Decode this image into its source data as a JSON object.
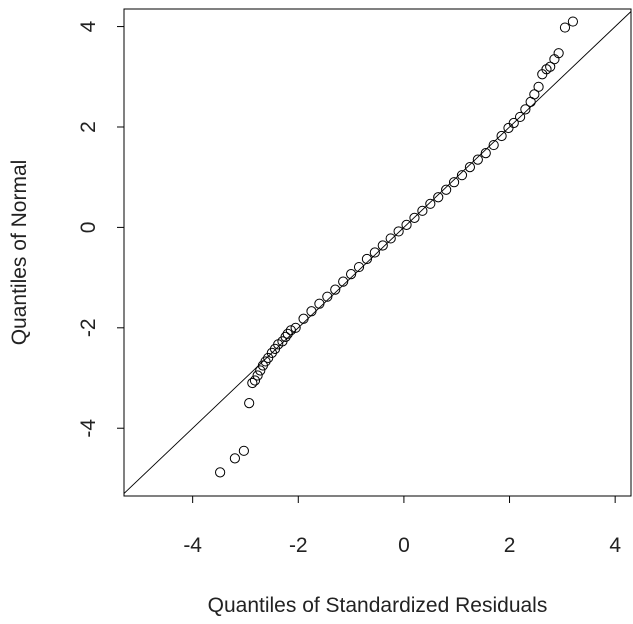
{
  "chart_data": {
    "type": "scatter",
    "title": "",
    "xlabel": "Quantiles of Standardized Residuals",
    "ylabel": "Quantiles of Normal",
    "xlim": [
      -5.3,
      4.3
    ],
    "ylim": [
      -5.35,
      4.35
    ],
    "xticks": [
      "-4",
      "-2",
      "0",
      "2",
      "4"
    ],
    "yticks": [
      "4",
      "2",
      "0",
      "-2",
      "-4"
    ],
    "grid": false,
    "legend": "none",
    "reference_line": {
      "slope": 1,
      "intercept": 0
    },
    "series": [
      {
        "marker": "open-circle",
        "color": "#000000",
        "x": [
          -3.48,
          -3.2,
          -3.03,
          -2.93,
          -2.87,
          -2.82,
          -2.77,
          -2.72,
          -2.67,
          -2.62,
          -2.57,
          -2.5,
          -2.44,
          -2.38,
          -2.3,
          -2.24,
          -2.2,
          -2.14,
          -2.05,
          -1.9,
          -1.75,
          -1.6,
          -1.45,
          -1.3,
          -1.15,
          -1.0,
          -0.85,
          -0.7,
          -0.55,
          -0.4,
          -0.25,
          -0.1,
          0.05,
          0.2,
          0.35,
          0.5,
          0.65,
          0.8,
          0.95,
          1.1,
          1.25,
          1.4,
          1.55,
          1.7,
          1.85,
          1.98,
          2.08,
          2.2,
          2.3,
          2.4,
          2.47,
          2.55,
          2.62,
          2.7,
          2.77,
          2.85,
          2.93,
          3.05,
          3.2
        ],
        "y": [
          -4.88,
          -4.6,
          -4.45,
          -3.5,
          -3.1,
          -3.05,
          -2.95,
          -2.85,
          -2.75,
          -2.67,
          -2.6,
          -2.5,
          -2.42,
          -2.33,
          -2.27,
          -2.18,
          -2.12,
          -2.05,
          -2.0,
          -1.82,
          -1.67,
          -1.52,
          -1.38,
          -1.24,
          -1.08,
          -0.93,
          -0.79,
          -0.63,
          -0.5,
          -0.36,
          -0.22,
          -0.08,
          0.05,
          0.19,
          0.33,
          0.47,
          0.6,
          0.75,
          0.9,
          1.04,
          1.2,
          1.35,
          1.48,
          1.64,
          1.82,
          1.98,
          2.08,
          2.2,
          2.35,
          2.5,
          2.65,
          2.8,
          3.05,
          3.15,
          3.2,
          3.35,
          3.47,
          3.98,
          4.1
        ]
      }
    ]
  }
}
